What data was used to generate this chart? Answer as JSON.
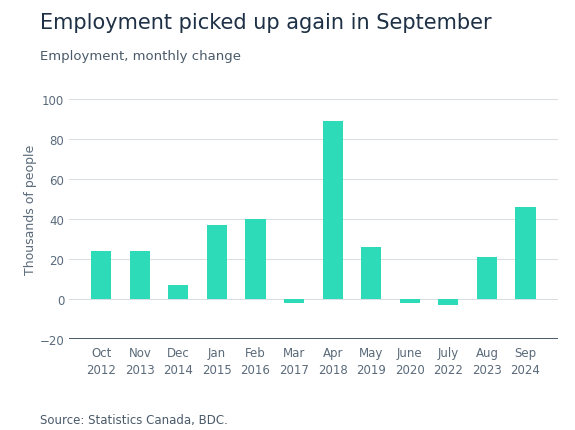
{
  "title": "Employment picked up again in September",
  "subtitle": "Employment, monthly change",
  "ylabel": "Thousands of people",
  "source": "Source: Statistics Canada, BDC.",
  "categories": [
    "Oct\n2012",
    "Nov\n2013",
    "Dec\n2014",
    "Jan\n2015",
    "Feb\n2016",
    "Mar\n2017",
    "Apr\n2018",
    "May\n2019",
    "June\n2020",
    "July\n2022",
    "Aug\n2023",
    "Sep\n2024"
  ],
  "values": [
    24,
    24,
    7,
    37,
    40,
    -2,
    89,
    26,
    -2,
    -3,
    21,
    46
  ],
  "bar_color": "#2DDBB8",
  "ylim": [
    -20,
    110
  ],
  "yticks": [
    -20,
    0,
    20,
    40,
    60,
    80,
    100
  ],
  "background_color": "#ffffff",
  "title_fontsize": 15,
  "subtitle_fontsize": 9.5,
  "axis_label_fontsize": 9,
  "tick_fontsize": 8.5,
  "source_fontsize": 8.5,
  "title_color": "#1d3045",
  "subtitle_color": "#4a5a6a",
  "tick_color": "#5a6a7a",
  "grid_color": "#d8dde2",
  "zero_line_color": "#d8dde2",
  "bottom_axis_color": "#2d3d50"
}
